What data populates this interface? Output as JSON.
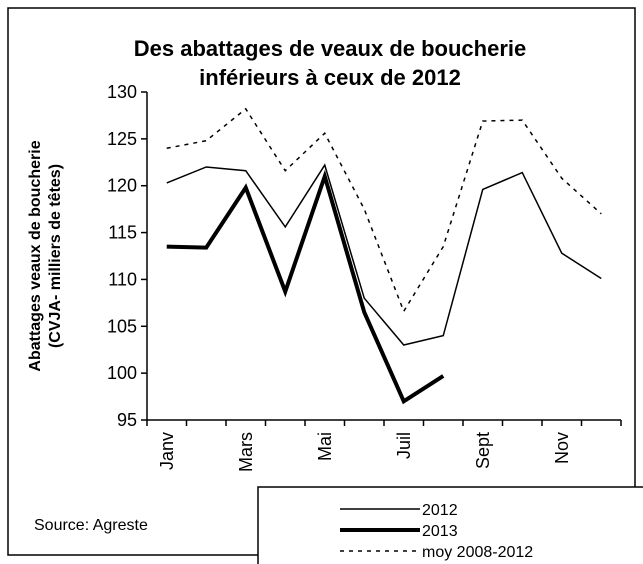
{
  "chart_data": {
    "type": "line",
    "title": "Des abattages de veaux de boucherie inférieurs à ceux de 2012",
    "ylabel": [
      "Abattages veaux de boucherie",
      "(CVJA- milliers de têtes)"
    ],
    "annotation": "Source: Agreste",
    "categories": [
      "Janv",
      null,
      "Mars",
      null,
      "Mai",
      null,
      "Juil",
      null,
      "Sept",
      null,
      "Nov",
      null
    ],
    "series": [
      {
        "name": "2012",
        "color": "#000000",
        "width": 1.5,
        "dash": false,
        "values": [
          120.3,
          122,
          121.6,
          115.6,
          122.2,
          108,
          103,
          104,
          119.6,
          121.4,
          112.8,
          110.1
        ]
      },
      {
        "name": "2013",
        "color": "#000000",
        "width": 4,
        "dash": false,
        "values": [
          113.5,
          113.4,
          119.8,
          108.7,
          121,
          106.5,
          97,
          99.7,
          null,
          null,
          null,
          null
        ]
      },
      {
        "name": "moy 2008-2012",
        "color": "#000000",
        "width": 1.5,
        "dash": true,
        "values": [
          124,
          124.8,
          128.2,
          121.6,
          125.6,
          117.5,
          106.6,
          113.5,
          126.9,
          127,
          120.8,
          117
        ]
      }
    ],
    "ylim": [
      95,
      130
    ],
    "yticks": [
      95,
      100,
      105,
      110,
      115,
      120,
      125,
      130
    ]
  }
}
